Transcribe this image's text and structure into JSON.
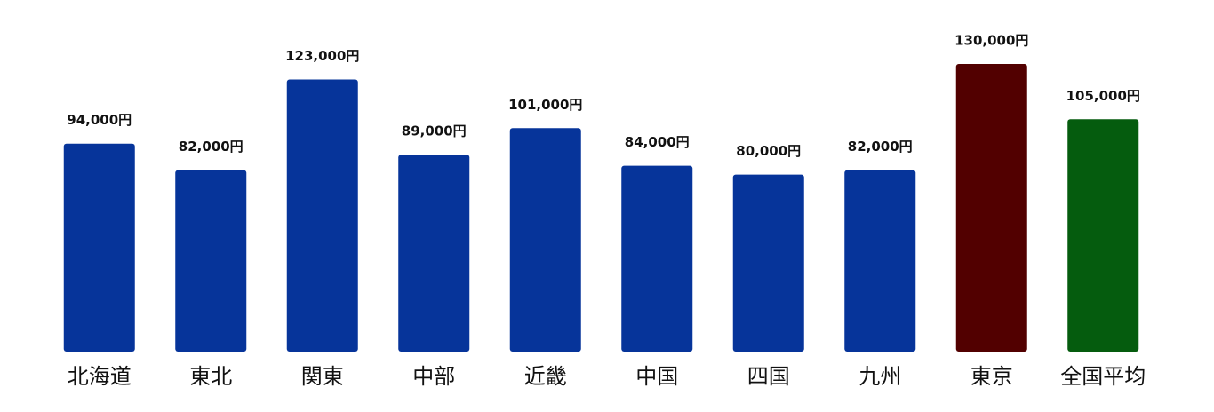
{
  "chart_data": {
    "type": "bar",
    "categories": [
      "北海道",
      "東北",
      "関東",
      "中部",
      "近畿",
      "中国",
      "四国",
      "九州",
      "東京",
      "全国平均"
    ],
    "values": [
      94000,
      82000,
      123000,
      89000,
      101000,
      84000,
      80000,
      82000,
      130000,
      105000
    ],
    "value_labels": [
      "94,000円",
      "82,000円",
      "123,000円",
      "89,000円",
      "101,000円",
      "84,000円",
      "80,000円",
      "82,000円",
      "130,000円",
      "105,000円"
    ],
    "colors": [
      "#06349a",
      "#06349a",
      "#06349a",
      "#06349a",
      "#06349a",
      "#06349a",
      "#06349a",
      "#06349a",
      "#520000",
      "#055c0e"
    ]
  }
}
